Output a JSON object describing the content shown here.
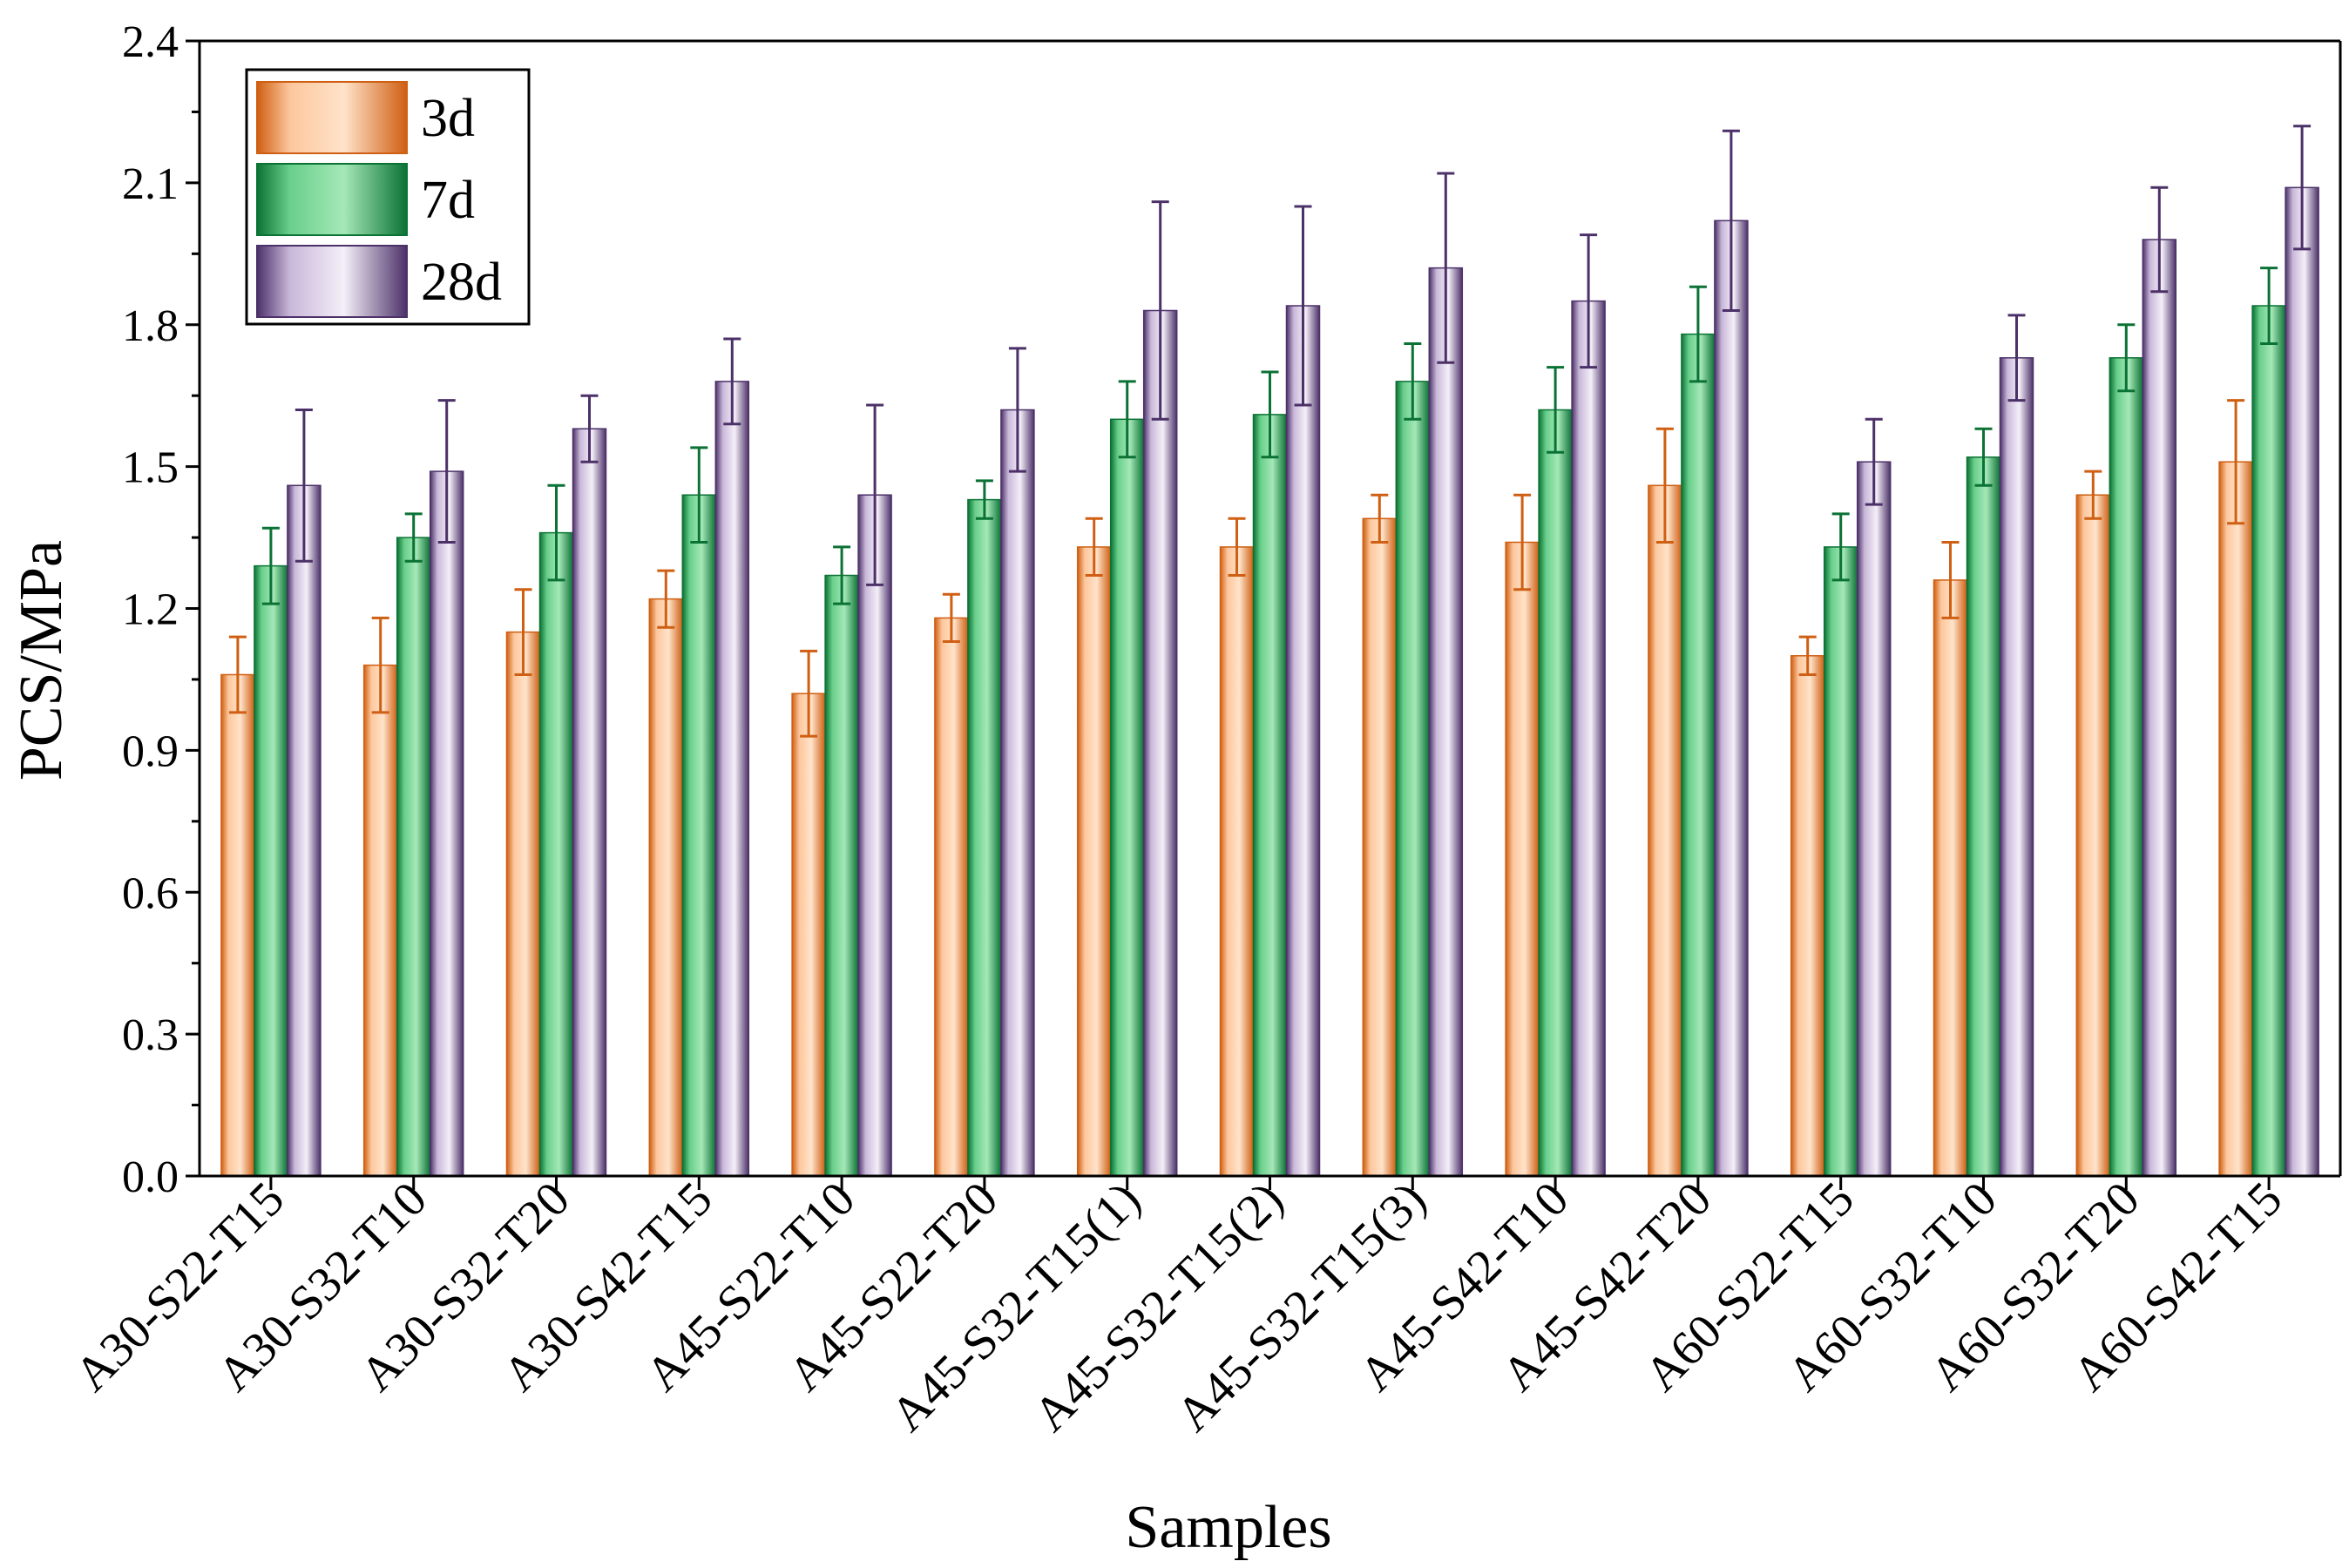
{
  "chart_data": {
    "type": "bar",
    "title": "",
    "xlabel": "Samples",
    "ylabel": "PCS/MPa",
    "ylim": [
      0,
      2.4
    ],
    "yticks": [
      "0.0",
      "0.3",
      "0.6",
      "0.9",
      "1.2",
      "1.5",
      "1.8",
      "2.1",
      "2.4"
    ],
    "legend_position": "top-left",
    "grid": false,
    "categories": [
      "A30-S22-T15",
      "A30-S32-T10",
      "A30-S32-T20",
      "A30-S42-T15",
      "A45-S22-T10",
      "A45-S22-T20",
      "A45-S32-T15(1)",
      "A45-S32-T15(2)",
      "A45-S32-T15(3)",
      "A45-S42-T10",
      "A45-S42-T20",
      "A60-S22-T15",
      "A60-S32-T10",
      "A60-S32-T20",
      "A60-S42-T15"
    ],
    "series": [
      {
        "name": "3d",
        "colors": [
          "#cf5f12",
          "#fdc79d",
          "#ffe3ca"
        ],
        "values": [
          1.06,
          1.08,
          1.15,
          1.22,
          1.02,
          1.18,
          1.33,
          1.33,
          1.39,
          1.34,
          1.46,
          1.1,
          1.26,
          1.44,
          1.51
        ],
        "errors": [
          0.08,
          0.1,
          0.09,
          0.06,
          0.09,
          0.05,
          0.06,
          0.06,
          0.05,
          0.1,
          0.12,
          0.04,
          0.08,
          0.05,
          0.13
        ]
      },
      {
        "name": "7d",
        "colors": [
          "#0b7235",
          "#69cf8b",
          "#a5e8b8"
        ],
        "values": [
          1.29,
          1.35,
          1.36,
          1.44,
          1.27,
          1.43,
          1.6,
          1.61,
          1.68,
          1.62,
          1.78,
          1.33,
          1.52,
          1.73,
          1.84
        ],
        "errors": [
          0.08,
          0.05,
          0.1,
          0.1,
          0.06,
          0.04,
          0.08,
          0.09,
          0.08,
          0.09,
          0.1,
          0.07,
          0.06,
          0.07,
          0.08
        ]
      },
      {
        "name": "28d",
        "colors": [
          "#4c3169",
          "#c9b8d9",
          "#f4eff8"
        ],
        "values": [
          1.46,
          1.49,
          1.58,
          1.68,
          1.44,
          1.62,
          1.83,
          1.84,
          1.92,
          1.85,
          2.02,
          1.51,
          1.73,
          1.98,
          2.09
        ],
        "errors": [
          0.16,
          0.15,
          0.07,
          0.09,
          0.19,
          0.13,
          0.23,
          0.21,
          0.2,
          0.14,
          0.19,
          0.09,
          0.09,
          0.11,
          0.13
        ]
      }
    ]
  }
}
